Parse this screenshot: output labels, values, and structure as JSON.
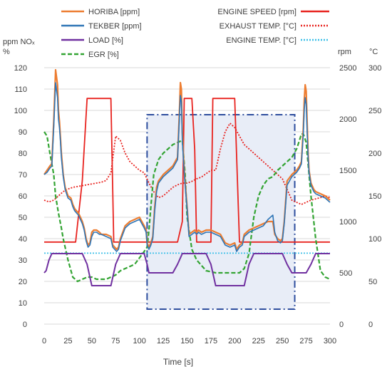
{
  "chart_data": {
    "type": "line",
    "xlabel": "Time [s]",
    "y_left_label": "ppm NOx\n%",
    "y_left_label_lines": [
      "ppm NOₓ",
      "%"
    ],
    "y_right_rpm_label": "rpm",
    "y_right_temp_label": "°C",
    "xlim": [
      0,
      300
    ],
    "ylim_left": [
      0,
      120
    ],
    "ylim_rpm": [
      0,
      2500
    ],
    "ylim_temp": [
      0,
      300
    ],
    "x_ticks": [
      0,
      25,
      50,
      75,
      100,
      125,
      150,
      175,
      200,
      225,
      250,
      275,
      300
    ],
    "y_left_ticks": [
      0,
      10,
      20,
      30,
      40,
      50,
      60,
      70,
      80,
      90,
      100,
      110,
      120
    ],
    "y_rpm_ticks": [
      0,
      500,
      1000,
      1500,
      2000,
      2500
    ],
    "y_temp_ticks": [
      0,
      50,
      100,
      150,
      200,
      250,
      300
    ],
    "grid": "horizontal",
    "legend_left": [
      "HORIBA [ppm]",
      "TEKBER [ppm]",
      "LOAD [%]",
      "EGR [%]"
    ],
    "legend_right": [
      "ENGINE SPEED [rpm]",
      "EXHAUST TEMP. [°C]",
      "ENGINE TEMP. [°C]"
    ],
    "highlight_region": {
      "x_start": 108,
      "x_end": 263,
      "y_start": 7,
      "y_end": 98
    },
    "series": [
      {
        "name": "HORIBA [ppm]",
        "axis": "left",
        "color": "#ED7D31",
        "style": "solid",
        "x": [
          0,
          3,
          6,
          8,
          10,
          12,
          14,
          15,
          16,
          17,
          18,
          20,
          22,
          25,
          28,
          30,
          32,
          34,
          36,
          38,
          40,
          42,
          44,
          46,
          48,
          50,
          52,
          55,
          58,
          60,
          65,
          70,
          72,
          74,
          76,
          78,
          80,
          85,
          90,
          95,
          100,
          105,
          107,
          108,
          110,
          112,
          114,
          116,
          118,
          120,
          125,
          130,
          135,
          140,
          142,
          143,
          144,
          145,
          146,
          147,
          148,
          150,
          152,
          155,
          158,
          160,
          162,
          165,
          170,
          175,
          180,
          185,
          190,
          195,
          200,
          202,
          205,
          208,
          210,
          215,
          220,
          225,
          230,
          235,
          240,
          242,
          245,
          248,
          250,
          252,
          255,
          260,
          265,
          268,
          270,
          272,
          273,
          274,
          275,
          276,
          277,
          278,
          280,
          283,
          285,
          290,
          295,
          300
        ],
        "y": [
          70,
          72,
          74,
          75,
          95,
          119,
          112,
          100,
          95,
          88,
          80,
          70,
          64,
          60,
          59,
          56,
          54,
          53,
          52,
          50,
          48,
          45,
          40,
          37,
          38,
          43,
          44,
          44,
          43,
          42,
          42,
          41,
          37,
          36,
          35,
          36,
          40,
          46,
          48,
          49,
          50,
          46,
          44,
          38,
          36,
          38,
          41,
          55,
          64,
          67,
          70,
          72,
          74,
          78,
          100,
          113,
          110,
          90,
          80,
          72,
          66,
          55,
          42,
          43,
          44,
          43,
          44,
          43,
          44,
          44,
          43,
          42,
          38,
          37,
          38,
          35,
          37,
          38,
          42,
          44,
          45,
          46,
          47,
          48,
          48,
          42,
          40,
          39,
          40,
          48,
          67,
          70,
          72,
          74,
          76,
          92,
          105,
          112,
          109,
          95,
          80,
          72,
          66,
          63,
          62,
          61,
          60,
          58
        ]
      },
      {
        "name": "TEKBER [ppm]",
        "axis": "left",
        "color": "#2E75B6",
        "style": "solid",
        "x": [
          0,
          3,
          6,
          8,
          10,
          12,
          14,
          15,
          16,
          17,
          18,
          20,
          22,
          25,
          28,
          30,
          32,
          34,
          36,
          38,
          40,
          42,
          44,
          46,
          48,
          50,
          52,
          55,
          58,
          60,
          65,
          70,
          72,
          74,
          76,
          78,
          80,
          85,
          90,
          95,
          100,
          105,
          107,
          108,
          110,
          112,
          114,
          116,
          118,
          120,
          125,
          130,
          135,
          140,
          142,
          143,
          144,
          145,
          146,
          147,
          148,
          150,
          152,
          155,
          158,
          160,
          162,
          165,
          170,
          175,
          180,
          185,
          190,
          195,
          200,
          202,
          205,
          208,
          210,
          215,
          220,
          225,
          230,
          235,
          240,
          242,
          245,
          248,
          250,
          252,
          255,
          260,
          265,
          268,
          270,
          272,
          273,
          274,
          275,
          276,
          277,
          278,
          280,
          283,
          285,
          290,
          295,
          300
        ],
        "y": [
          70,
          71,
          73,
          74,
          92,
          113,
          106,
          96,
          92,
          86,
          78,
          69,
          63,
          59,
          58,
          55,
          53,
          52,
          51,
          49,
          47,
          44,
          39,
          36,
          37,
          41,
          43,
          43,
          42,
          42,
          41,
          40,
          36,
          35,
          34,
          35,
          39,
          45,
          47,
          48,
          49,
          45,
          43,
          37,
          35,
          37,
          40,
          53,
          62,
          66,
          69,
          71,
          73,
          77,
          97,
          107,
          104,
          86,
          78,
          71,
          65,
          54,
          41,
          42,
          43,
          42,
          43,
          42,
          43,
          43,
          42,
          41,
          37,
          36,
          37,
          34,
          36,
          37,
          41,
          43,
          44,
          45,
          46,
          49,
          51,
          43,
          39,
          38,
          39,
          47,
          65,
          69,
          71,
          73,
          75,
          89,
          100,
          106,
          103,
          90,
          78,
          71,
          65,
          62,
          61,
          60,
          59,
          57
        ]
      },
      {
        "name": "LOAD [%]",
        "axis": "left",
        "color": "#7030A0",
        "style": "solid",
        "x": [
          0,
          2,
          5,
          8,
          10,
          15,
          20,
          22,
          28,
          30,
          35,
          40,
          45,
          50,
          55,
          60,
          65,
          68,
          70,
          75,
          80,
          90,
          100,
          105,
          108,
          110,
          115,
          120,
          125,
          130,
          135,
          140,
          145,
          150,
          160,
          170,
          175,
          180,
          185,
          190,
          195,
          200,
          205,
          210,
          215,
          220,
          225,
          230,
          240,
          250,
          255,
          260,
          265,
          270,
          275,
          280,
          285,
          290,
          295,
          300
        ],
        "y": [
          24,
          25,
          30,
          33,
          33,
          33,
          33,
          33,
          33,
          33,
          33,
          33,
          28,
          18,
          18,
          18,
          18,
          18,
          18,
          28,
          33,
          33,
          33,
          33,
          28,
          24,
          24,
          24,
          24,
          24,
          24,
          28,
          33,
          33,
          33,
          33,
          28,
          18,
          18,
          18,
          18,
          18,
          18,
          18,
          28,
          33,
          33,
          33,
          33,
          33,
          28,
          24,
          24,
          24,
          24,
          28,
          33,
          33,
          33,
          33
        ]
      },
      {
        "name": "EGR [%]",
        "axis": "left",
        "color": "#33A433",
        "style": "dashed",
        "x": [
          0,
          3,
          6,
          8,
          10,
          12,
          15,
          18,
          20,
          25,
          30,
          35,
          40,
          45,
          50,
          55,
          60,
          65,
          70,
          75,
          80,
          85,
          90,
          95,
          100,
          105,
          108,
          110,
          112,
          115,
          120,
          125,
          130,
          135,
          140,
          145,
          148,
          150,
          155,
          160,
          170,
          180,
          190,
          195,
          200,
          205,
          210,
          215,
          220,
          225,
          230,
          235,
          240,
          245,
          250,
          255,
          260,
          265,
          268,
          270,
          272,
          275,
          280,
          285,
          290,
          295,
          300
        ],
        "y": [
          90,
          88,
          80,
          75,
          70,
          60,
          52,
          45,
          40,
          30,
          22,
          20,
          21,
          22,
          22,
          21,
          21,
          21,
          22,
          23,
          25,
          26,
          27,
          28,
          31,
          34,
          36,
          44,
          55,
          70,
          77,
          80,
          82,
          84,
          85,
          86,
          70,
          50,
          35,
          30,
          25,
          24,
          24,
          24,
          24,
          24,
          26,
          33,
          50,
          60,
          65,
          68,
          69,
          72,
          74,
          76,
          78,
          82,
          86,
          89,
          89,
          85,
          60,
          40,
          25,
          22,
          21
        ]
      },
      {
        "name": "ENGINE SPEED [rpm]",
        "axis": "rpm",
        "color": "#E8231F",
        "style": "solid",
        "x": [
          0,
          25,
          33,
          40,
          45,
          70,
          73,
          80,
          100,
          105,
          120,
          140,
          145,
          147,
          150,
          155,
          158,
          160,
          170,
          175,
          177,
          180,
          185,
          190,
          200,
          205,
          210,
          215,
          230,
          250,
          280,
          300
        ],
        "y": [
          800,
          800,
          800,
          1400,
          2200,
          2200,
          800,
          800,
          800,
          800,
          800,
          800,
          1000,
          2200,
          2200,
          2200,
          1700,
          800,
          800,
          800,
          2200,
          2200,
          2200,
          2200,
          2200,
          800,
          800,
          800,
          800,
          800,
          800,
          800
        ]
      },
      {
        "name": "EXHAUST TEMP. [°C]",
        "axis": "temp",
        "color": "#E8231F",
        "style": "dotted",
        "x": [
          0,
          5,
          10,
          15,
          20,
          25,
          30,
          40,
          50,
          60,
          65,
          70,
          75,
          80,
          85,
          90,
          95,
          100,
          105,
          110,
          115,
          120,
          125,
          130,
          135,
          140,
          145,
          150,
          155,
          160,
          165,
          170,
          175,
          180,
          185,
          190,
          195,
          200,
          205,
          210,
          220,
          230,
          240,
          250,
          260,
          270,
          280,
          290,
          295,
          300
        ],
        "y": [
          145,
          143,
          145,
          150,
          155,
          158,
          160,
          162,
          164,
          166,
          168,
          177,
          220,
          215,
          200,
          190,
          185,
          180,
          177,
          165,
          155,
          148,
          150,
          155,
          160,
          163,
          165,
          165,
          167,
          170,
          172,
          176,
          180,
          180,
          205,
          225,
          235,
          230,
          220,
          210,
          200,
          190,
          180,
          170,
          145,
          140,
          145,
          148,
          150,
          148
        ]
      },
      {
        "name": "ENGINE TEMP. [°C]",
        "axis": "temp",
        "color": "#3FC0E8",
        "style": "dotted",
        "x": [
          0,
          100,
          200,
          300
        ],
        "y": [
          83,
          83,
          83,
          83
        ]
      }
    ]
  }
}
